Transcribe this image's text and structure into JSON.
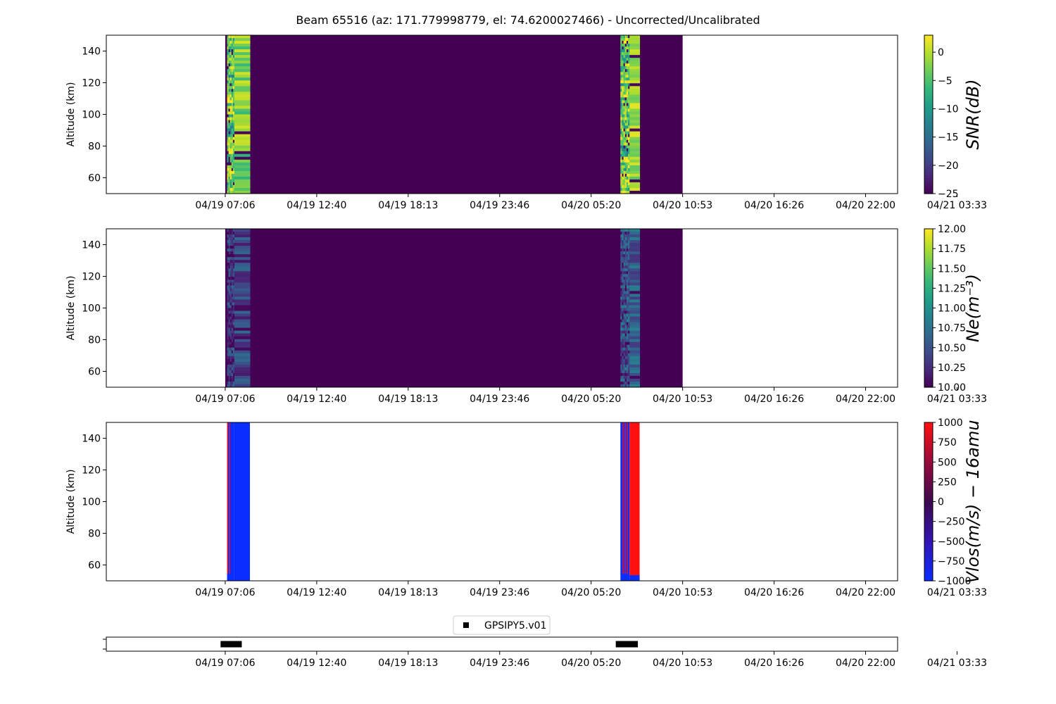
{
  "title": "Beam 65516 (az: 171.779998779, el: 74.6200027466) - Uncorrected/Uncalibrated",
  "time_ticks": [
    "04/19 07:06",
    "04/19 12:40",
    "04/19 18:13",
    "04/19 23:46",
    "04/20 05:20",
    "04/20 10:53",
    "04/20 16:26",
    "04/20 22:00",
    "04/21 03:33"
  ],
  "chart_data": [
    {
      "type": "heatmap",
      "name": "snr",
      "ylabel": "Altitude (km)",
      "ylim": [
        50,
        150
      ],
      "yticks": [
        60,
        80,
        100,
        120,
        140
      ],
      "xlim_ticks": [
        -1.3,
        7.35
      ],
      "data_extent_ticks": [
        0.0,
        5.0
      ],
      "colormap": "viridis",
      "colorbar": {
        "label": "SNR(dB)",
        "range": [
          -25,
          3
        ],
        "ticks": [
          0,
          -5,
          -10,
          -15,
          -20,
          -25
        ],
        "tick_labels": [
          "0",
          "−5",
          "−10",
          "−15",
          "−20",
          "−25"
        ]
      },
      "bursts": [
        {
          "start_tick": 0.02,
          "end_tick": 0.1,
          "level": 0.75,
          "variance": 0.2,
          "style": "noisy"
        },
        {
          "start_tick": 0.1,
          "end_tick": 0.27,
          "level": 0.8,
          "variance": 0.15,
          "style": "banded"
        },
        {
          "start_tick": 4.32,
          "end_tick": 4.42,
          "level": 0.8,
          "variance": 0.2,
          "style": "noisy"
        },
        {
          "start_tick": 4.42,
          "end_tick": 4.53,
          "level": 0.85,
          "variance": 0.12,
          "style": "banded"
        }
      ],
      "background_level": 0
    },
    {
      "type": "heatmap",
      "name": "ne",
      "ylabel": "Altitude (km)",
      "ylim": [
        50,
        150
      ],
      "yticks": [
        60,
        80,
        100,
        120,
        140
      ],
      "xlim_ticks": [
        -1.3,
        7.35
      ],
      "data_extent_ticks": [
        0.0,
        5.0
      ],
      "colormap": "viridis",
      "colorbar": {
        "label": "Ne(m⁻³)",
        "range": [
          10,
          12
        ],
        "ticks": [
          12.0,
          11.75,
          11.5,
          11.25,
          11.0,
          10.75,
          10.5,
          10.25,
          10.0
        ],
        "tick_labels": [
          "12.00",
          "11.75",
          "11.50",
          "11.25",
          "11.00",
          "10.75",
          "10.50",
          "10.25",
          "10.00"
        ]
      },
      "bursts": [
        {
          "start_tick": 0.02,
          "end_tick": 0.1,
          "level": 0.15,
          "variance": 0.12,
          "style": "noisy"
        },
        {
          "start_tick": 0.1,
          "end_tick": 0.27,
          "level": 0.2,
          "variance": 0.15,
          "style": "banded"
        },
        {
          "start_tick": 4.32,
          "end_tick": 4.42,
          "level": 0.2,
          "variance": 0.15,
          "style": "noisy"
        },
        {
          "start_tick": 4.42,
          "end_tick": 4.53,
          "level": 0.3,
          "variance": 0.15,
          "style": "banded"
        }
      ],
      "background_level": 0
    },
    {
      "type": "heatmap",
      "name": "vlos",
      "ylabel": "Altitude (km)",
      "ylim": [
        50,
        150
      ],
      "yticks": [
        60,
        80,
        100,
        120,
        140
      ],
      "xlim_ticks": [
        -1.3,
        7.35
      ],
      "colormap": "bwr_dark",
      "colorbar": {
        "label": "Vlos(m/s) − 16amu",
        "range": [
          -1000,
          1000
        ],
        "ticks": [
          1000,
          750,
          500,
          250,
          0,
          -250,
          -500,
          -750,
          -1000
        ],
        "tick_labels": [
          "1000",
          "750",
          "500",
          "250",
          "0",
          "−250",
          "−500",
          "−750",
          "−1000"
        ]
      },
      "bursts": [
        {
          "start_tick": 0.02,
          "end_tick": 0.1,
          "value": -1000,
          "stripes": "red"
        },
        {
          "start_tick": 0.1,
          "end_tick": 0.27,
          "value": -1000
        },
        {
          "start_tick": 4.32,
          "end_tick": 4.42,
          "value": -1000,
          "stripes": "red"
        },
        {
          "start_tick": 4.42,
          "end_tick": 4.53,
          "value": 1000
        }
      ]
    },
    {
      "type": "scatter",
      "name": "coverage",
      "xlim_ticks": [
        -1.3,
        7.35
      ],
      "legend": {
        "label": "GPSIPY5.v01",
        "placement": "top-center"
      },
      "segments": [
        {
          "start_tick": -0.02,
          "end_tick": 0.15
        },
        {
          "start_tick": 4.3,
          "end_tick": 4.48
        }
      ],
      "marker": "square",
      "color": "#000000"
    }
  ],
  "colors": {
    "axis": "#000000",
    "background": "#ffffff",
    "red": "#ff1010",
    "blue": "#0a2eff"
  }
}
